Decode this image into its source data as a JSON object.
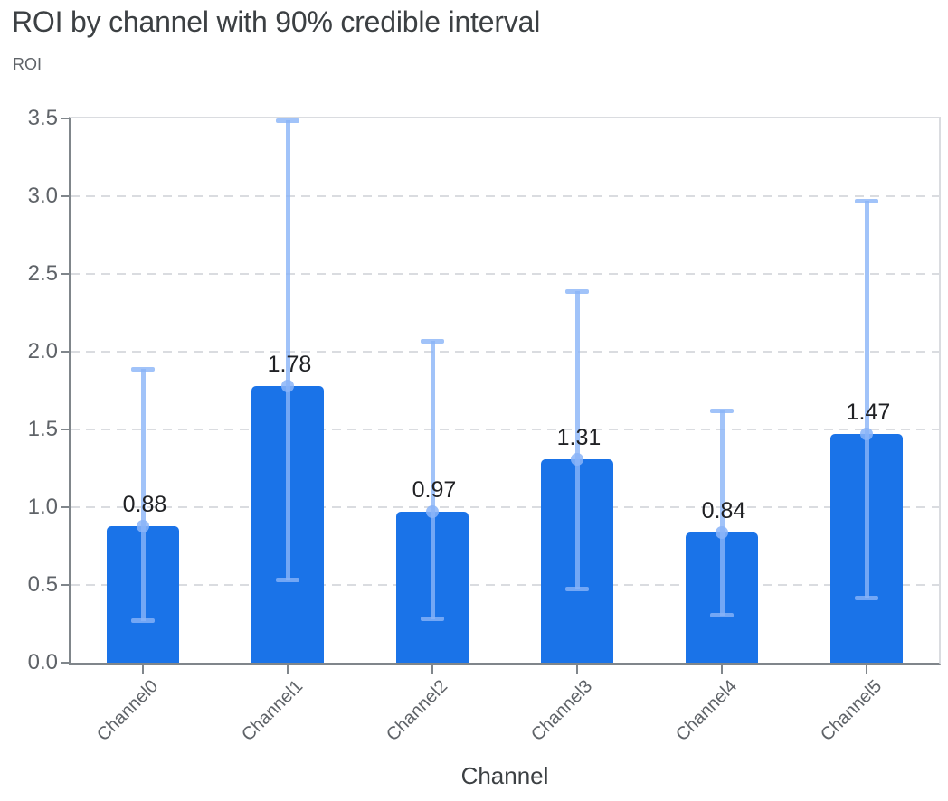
{
  "chart_data": {
    "type": "bar",
    "title": "ROI by channel with 90% credible interval",
    "ylabel": "ROI",
    "xlabel": "Channel",
    "categories": [
      "Channel0",
      "Channel1",
      "Channel2",
      "Channel3",
      "Channel4",
      "Channel5"
    ],
    "values": [
      0.88,
      1.78,
      0.97,
      1.31,
      0.84,
      1.47
    ],
    "value_labels": [
      "0.88",
      "1.78",
      "0.97",
      "1.31",
      "0.84",
      "1.47"
    ],
    "error_low": [
      0.27,
      0.53,
      0.28,
      0.47,
      0.3,
      0.41
    ],
    "error_high": [
      1.89,
      3.49,
      2.07,
      2.39,
      1.62,
      2.97
    ],
    "ylim": [
      0.0,
      3.5
    ],
    "yticks": [
      0.0,
      0.5,
      1.0,
      1.5,
      2.0,
      2.5,
      3.0,
      3.5
    ],
    "ytick_labels": [
      "0.0",
      "0.5",
      "1.0",
      "1.5",
      "2.0",
      "2.5",
      "3.0",
      "3.5"
    ],
    "grid": "horizontal-dashed",
    "legend": "none",
    "colors": {
      "bar": "#1a73e8",
      "error_bar": "#8ab4f8",
      "grid": "#dadce0",
      "plot_border": "#dadce0",
      "axis": "#80868b",
      "tick_label": "#5f6368",
      "value_label": "#202124",
      "title": "#3c4043"
    }
  }
}
